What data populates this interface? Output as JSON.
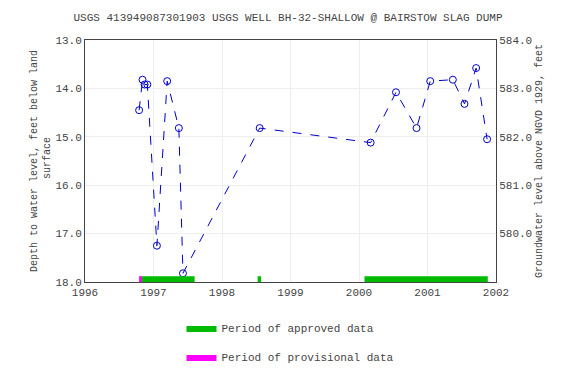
{
  "chart_data": {
    "type": "line",
    "title": "USGS 413949087301903 USGS WELL BH-32-SHALLOW @ BAIRSTOW SLAG DUMP",
    "ylabel": "Depth to water level, feet below land\n surface",
    "y2label": "Groundwater level above NGVD 1929, feet",
    "x": [
      1996.79,
      1996.84,
      1996.87,
      1996.91,
      1997.05,
      1997.2,
      1997.37,
      1997.43,
      1998.55,
      2000.17,
      2000.54,
      2000.84,
      2001.04,
      2001.37,
      2001.54,
      2001.71,
      2001.87
    ],
    "series": [
      {
        "color": "#0000CC",
        "line_style": "dashed",
        "marker": "open circle",
        "values": [
          14.45,
          13.82,
          13.92,
          13.92,
          17.25,
          13.85,
          14.82,
          17.82,
          14.82,
          15.12,
          14.08,
          14.82,
          13.85,
          13.82,
          14.32,
          13.58,
          15.05
        ]
      },
      {
        "name": "Period of approved data",
        "type": "span",
        "color": "#00BB00",
        "spans": [
          [
            1996.82,
            1997.6
          ],
          [
            1998.52,
            1998.57
          ],
          [
            2000.08,
            2001.88
          ]
        ],
        "span_y": [
          17.88,
          18.0
        ]
      },
      {
        "name": "Period of provisional data",
        "type": "span",
        "color": "#FF00FF",
        "spans": [
          [
            1996.79,
            1996.83
          ]
        ],
        "span_y": [
          17.88,
          18.0
        ]
      }
    ],
    "xlim": [
      1996.0,
      2002.0
    ],
    "xticks": [
      1996,
      1997,
      1998,
      1999,
      2000,
      2001,
      2002
    ],
    "ylim": [
      18.0,
      13.0
    ],
    "yticks": [
      {
        "value": 13.0,
        "label": "13.0"
      },
      {
        "value": 14.0,
        "label": "14.0"
      },
      {
        "value": 15.0,
        "label": "15.0"
      },
      {
        "value": 16.0,
        "label": "16.0"
      },
      {
        "value": 17.0,
        "label": "17.0"
      },
      {
        "value": 18.0,
        "label": "18.0"
      }
    ],
    "y2lim": [
      579.0,
      584.0
    ],
    "y2ticks": [
      {
        "value": 584.0,
        "label": "584.0"
      },
      {
        "value": 583.0,
        "label": "583.0"
      },
      {
        "value": 582.0,
        "label": "582.0"
      },
      {
        "value": 581.0,
        "label": "581.0"
      },
      {
        "value": 580.0,
        "label": "580.0"
      }
    ],
    "grid": true,
    "legend": "bottom"
  }
}
